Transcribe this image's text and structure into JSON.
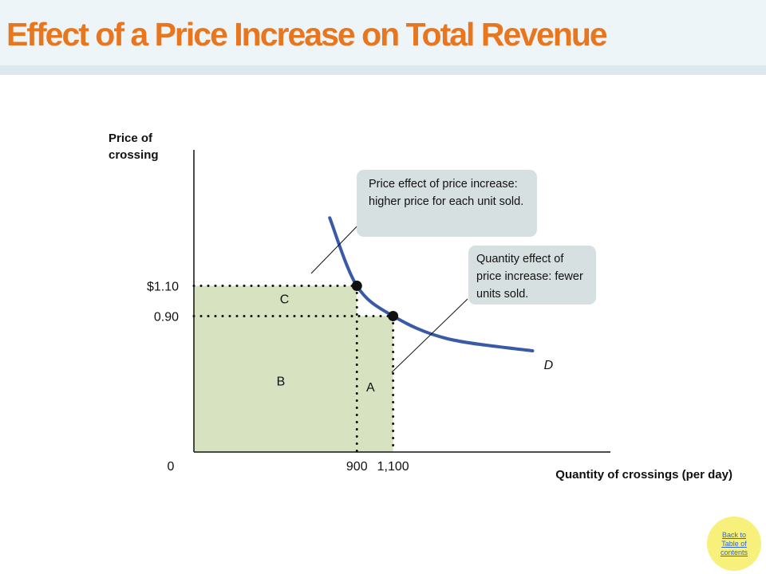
{
  "slide": {
    "title": "Effect of a Price Increase on Total Revenue",
    "back_link": "Back to Table of contents"
  },
  "colors": {
    "title": "#e8761e",
    "demand_curve": "#3a5aa8",
    "revenue_area": "#d6e2c0",
    "callout_bg": "#d7e0e0",
    "back_button": "#f7f07a"
  },
  "callouts": {
    "price_effect": "Price effect of price increase: higher price for each unit sold.",
    "quantity_effect": "Quantity effect of price increase: fewer units sold."
  },
  "chart_data": {
    "type": "line",
    "ylabel": "Price of crossing",
    "xlabel": "Quantity of crossings (per day)",
    "x_ticks": [
      "0",
      "900",
      "1,100"
    ],
    "y_ticks": [
      "$1.10",
      "0.90"
    ],
    "series": [
      {
        "name": "D",
        "x": [
          750,
          900,
          1100,
          1400,
          1870
        ],
        "y": [
          1.55,
          1.1,
          0.9,
          0.75,
          0.67
        ]
      }
    ],
    "points": [
      {
        "x": 900,
        "y": 1.1
      },
      {
        "x": 1100,
        "y": 0.9
      }
    ],
    "regions": [
      {
        "label": "C",
        "x": [
          0,
          900
        ],
        "y": [
          0.9,
          1.1
        ]
      },
      {
        "label": "B",
        "x": [
          0,
          900
        ],
        "y": [
          0,
          0.9
        ]
      },
      {
        "label": "A",
        "x": [
          900,
          1100
        ],
        "y": [
          0,
          0.9
        ]
      }
    ],
    "xlim": [
      0,
      2300
    ],
    "ylim": [
      0,
      2.0
    ],
    "grid": false
  }
}
